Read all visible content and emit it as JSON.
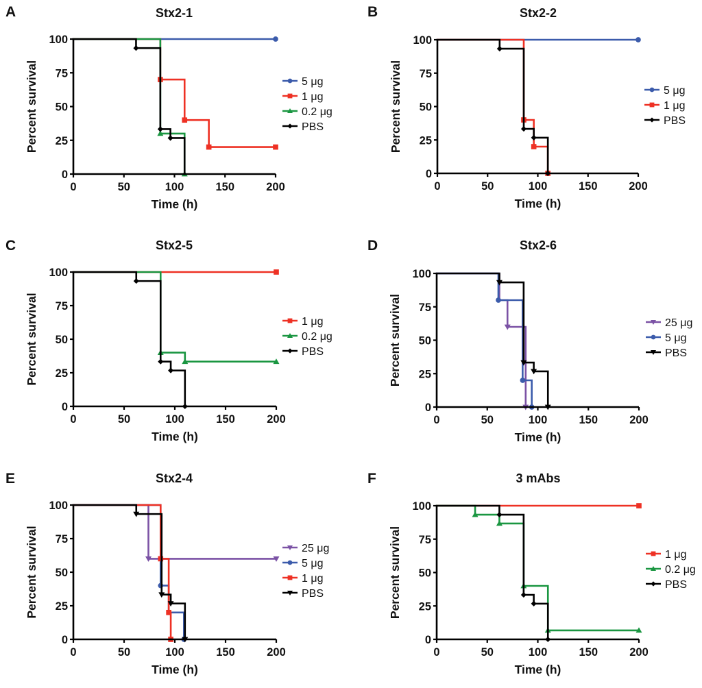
{
  "chart_data": [
    {
      "panel": "A",
      "type": "line",
      "subtype": "kaplan-meier-step",
      "title": "Stx2-1",
      "xlabel": "Time (h)",
      "ylabel": "Percent survival",
      "xlim": [
        0,
        200
      ],
      "ylim": [
        0,
        100
      ],
      "xticks": [
        0,
        50,
        100,
        150,
        200
      ],
      "yticks": [
        0,
        25,
        50,
        75,
        100
      ],
      "grid": false,
      "legend_position": "right",
      "series": [
        {
          "name": "5 μg",
          "color": "#3b5bab",
          "marker": "circle",
          "steps": [
            [
              0,
              100
            ],
            [
              200,
              100
            ]
          ],
          "marks": [
            [
              200,
              100
            ]
          ]
        },
        {
          "name": "1 μg",
          "color": "#ee3124",
          "marker": "square",
          "steps": [
            [
              0,
              100
            ],
            [
              86,
              70
            ],
            [
              110,
              40
            ],
            [
              134,
              20
            ],
            [
              200,
              20
            ]
          ],
          "marks": [
            [
              86,
              70
            ],
            [
              110,
              40
            ],
            [
              134,
              20
            ],
            [
              200,
              20
            ]
          ]
        },
        {
          "name": "0.2 μg",
          "color": "#1a9641",
          "marker": "triangle-up",
          "steps": [
            [
              0,
              100
            ],
            [
              86,
              30
            ],
            [
              110,
              0
            ]
          ],
          "marks": [
            [
              86,
              30
            ],
            [
              110,
              0
            ]
          ]
        },
        {
          "name": "PBS",
          "color": "#000000",
          "marker": "diamond",
          "steps": [
            [
              0,
              100
            ],
            [
              62,
              93.3
            ],
            [
              86,
              33.3
            ],
            [
              96,
              26.7
            ],
            [
              110,
              0
            ]
          ],
          "marks": [
            [
              62,
              93.3
            ],
            [
              86,
              33.3
            ],
            [
              96,
              26.7
            ]
          ]
        }
      ]
    },
    {
      "panel": "B",
      "type": "line",
      "subtype": "kaplan-meier-step",
      "title": "Stx2-2",
      "xlabel": "Time (h)",
      "ylabel": "Percent survival",
      "xlim": [
        0,
        200
      ],
      "ylim": [
        0,
        100
      ],
      "xticks": [
        0,
        50,
        100,
        150,
        200
      ],
      "yticks": [
        0,
        25,
        50,
        75,
        100
      ],
      "grid": false,
      "legend_position": "right",
      "series": [
        {
          "name": "5 μg",
          "color": "#3b5bab",
          "marker": "circle",
          "steps": [
            [
              0,
              100
            ],
            [
              200,
              100
            ]
          ],
          "marks": [
            [
              200,
              100
            ]
          ]
        },
        {
          "name": "1 μg",
          "color": "#ee3124",
          "marker": "square",
          "steps": [
            [
              0,
              100
            ],
            [
              86,
              40
            ],
            [
              96,
              20
            ],
            [
              110,
              0
            ]
          ],
          "marks": [
            [
              86,
              40
            ],
            [
              96,
              20
            ],
            [
              110,
              0
            ]
          ]
        },
        {
          "name": "PBS",
          "color": "#000000",
          "marker": "diamond",
          "steps": [
            [
              0,
              100
            ],
            [
              62,
              93.3
            ],
            [
              86,
              33.3
            ],
            [
              96,
              26.7
            ],
            [
              110,
              0
            ]
          ],
          "marks": [
            [
              62,
              93.3
            ],
            [
              86,
              33.3
            ],
            [
              96,
              26.7
            ],
            [
              110,
              0
            ]
          ]
        }
      ]
    },
    {
      "panel": "C",
      "type": "line",
      "subtype": "kaplan-meier-step",
      "title": "Stx2-5",
      "xlabel": "Time (h)",
      "ylabel": "Percent survival",
      "xlim": [
        0,
        200
      ],
      "ylim": [
        0,
        100
      ],
      "xticks": [
        0,
        50,
        100,
        150,
        200
      ],
      "yticks": [
        0,
        25,
        50,
        75,
        100
      ],
      "grid": false,
      "legend_position": "right",
      "series": [
        {
          "name": "1 μg",
          "color": "#ee3124",
          "marker": "square",
          "steps": [
            [
              0,
              100
            ],
            [
              200,
              100
            ]
          ],
          "marks": [
            [
              200,
              100
            ]
          ]
        },
        {
          "name": "0.2 μg",
          "color": "#1a9641",
          "marker": "triangle-up",
          "steps": [
            [
              0,
              100
            ],
            [
              86,
              40
            ],
            [
              110,
              33.3
            ],
            [
              200,
              33.3
            ]
          ],
          "marks": [
            [
              86,
              40
            ],
            [
              110,
              33.3
            ],
            [
              200,
              33.3
            ]
          ]
        },
        {
          "name": "PBS",
          "color": "#000000",
          "marker": "diamond",
          "steps": [
            [
              0,
              100
            ],
            [
              62,
              93.3
            ],
            [
              86,
              33.3
            ],
            [
              96,
              26.7
            ],
            [
              110,
              0
            ]
          ],
          "marks": [
            [
              62,
              93.3
            ],
            [
              86,
              33.3
            ],
            [
              96,
              26.7
            ],
            [
              110,
              0
            ]
          ]
        }
      ]
    },
    {
      "panel": "D",
      "type": "line",
      "subtype": "kaplan-meier-step",
      "title": "Stx2-6",
      "xlabel": "Time (h)",
      "ylabel": "Percent survival",
      "xlim": [
        0,
        200
      ],
      "ylim": [
        0,
        100
      ],
      "xticks": [
        0,
        50,
        100,
        150,
        200
      ],
      "yticks": [
        0,
        25,
        50,
        75,
        100
      ],
      "grid": false,
      "legend_position": "right",
      "series": [
        {
          "name": "25 μg",
          "color": "#7b52a5",
          "marker": "triangle-down",
          "steps": [
            [
              0,
              100
            ],
            [
              62,
              80
            ],
            [
              70,
              60
            ],
            [
              88,
              0
            ]
          ],
          "marks": [
            [
              70,
              60
            ],
            [
              88,
              0
            ]
          ]
        },
        {
          "name": "5 μg",
          "color": "#3b5bab",
          "marker": "circle",
          "steps": [
            [
              0,
              100
            ],
            [
              61,
              80
            ],
            [
              85,
              20
            ],
            [
              94,
              0
            ]
          ],
          "marks": [
            [
              61,
              80
            ],
            [
              85,
              20
            ],
            [
              94,
              0
            ]
          ]
        },
        {
          "name": "PBS",
          "color": "#000000",
          "marker": "triangle-down",
          "steps": [
            [
              0,
              100
            ],
            [
              62,
              93.3
            ],
            [
              86,
              33.3
            ],
            [
              96,
              26.7
            ],
            [
              110,
              0
            ]
          ],
          "marks": [
            [
              62,
              93.3
            ],
            [
              86,
              33.3
            ],
            [
              96,
              26.7
            ],
            [
              110,
              0
            ]
          ]
        }
      ]
    },
    {
      "panel": "E",
      "type": "line",
      "subtype": "kaplan-meier-step",
      "title": "Stx2-4",
      "xlabel": "Time (h)",
      "ylabel": "Percent survival",
      "xlim": [
        0,
        200
      ],
      "ylim": [
        0,
        100
      ],
      "xticks": [
        0,
        50,
        100,
        150,
        200
      ],
      "yticks": [
        0,
        25,
        50,
        75,
        100
      ],
      "grid": false,
      "legend_position": "right",
      "series": [
        {
          "name": "25 μg",
          "color": "#7b52a5",
          "marker": "triangle-down",
          "steps": [
            [
              0,
              100
            ],
            [
              74,
              60
            ],
            [
              200,
              60
            ]
          ],
          "marks": [
            [
              74,
              60
            ],
            [
              200,
              60
            ]
          ]
        },
        {
          "name": "5 μg",
          "color": "#3b5bab",
          "marker": "circle",
          "steps": [
            [
              0,
              100
            ],
            [
              86,
              40
            ],
            [
              94,
              20
            ],
            [
              109,
              0
            ]
          ],
          "marks": [
            [
              86,
              40
            ],
            [
              109,
              0
            ]
          ]
        },
        {
          "name": "1 μg",
          "color": "#ee3124",
          "marker": "square",
          "steps": [
            [
              0,
              100
            ],
            [
              86,
              60
            ],
            [
              94,
              20
            ],
            [
              96,
              0
            ]
          ],
          "marks": [
            [
              86,
              60
            ],
            [
              94,
              20
            ],
            [
              96,
              0
            ]
          ]
        },
        {
          "name": "PBS",
          "color": "#000000",
          "marker": "triangle-down",
          "steps": [
            [
              0,
              100
            ],
            [
              62,
              93.3
            ],
            [
              87,
              33.3
            ],
            [
              96,
              26.7
            ],
            [
              110,
              0
            ]
          ],
          "marks": [
            [
              62,
              93.3
            ],
            [
              87,
              33.3
            ],
            [
              96,
              26.7
            ],
            [
              110,
              0
            ]
          ]
        }
      ]
    },
    {
      "panel": "F",
      "type": "line",
      "subtype": "kaplan-meier-step",
      "title": "3 mAbs",
      "xlabel": "Time (h)",
      "ylabel": "Percent survival",
      "xlim": [
        0,
        200
      ],
      "ylim": [
        0,
        100
      ],
      "xticks": [
        0,
        50,
        100,
        150,
        200
      ],
      "yticks": [
        0,
        25,
        50,
        75,
        100
      ],
      "grid": false,
      "legend_position": "right",
      "series": [
        {
          "name": "1 μg",
          "color": "#ee3124",
          "marker": "square",
          "steps": [
            [
              0,
              100
            ],
            [
              200,
              100
            ]
          ],
          "marks": [
            [
              200,
              100
            ]
          ]
        },
        {
          "name": "0.2 μg",
          "color": "#1a9641",
          "marker": "triangle-up",
          "steps": [
            [
              0,
              100
            ],
            [
              38,
              93.3
            ],
            [
              62,
              86.7
            ],
            [
              86,
              40
            ],
            [
              110,
              6.7
            ],
            [
              200,
              6.7
            ]
          ],
          "marks": [
            [
              38,
              93.3
            ],
            [
              62,
              86.7
            ],
            [
              86,
              40
            ],
            [
              110,
              6.7
            ],
            [
              200,
              6.7
            ]
          ]
        },
        {
          "name": "PBS",
          "color": "#000000",
          "marker": "diamond",
          "steps": [
            [
              0,
              100
            ],
            [
              62,
              93.3
            ],
            [
              86,
              33.3
            ],
            [
              96,
              26.7
            ],
            [
              110,
              0
            ]
          ],
          "marks": [
            [
              62,
              93.3
            ],
            [
              86,
              33.3
            ],
            [
              96,
              26.7
            ],
            [
              110,
              0
            ]
          ]
        }
      ]
    }
  ]
}
